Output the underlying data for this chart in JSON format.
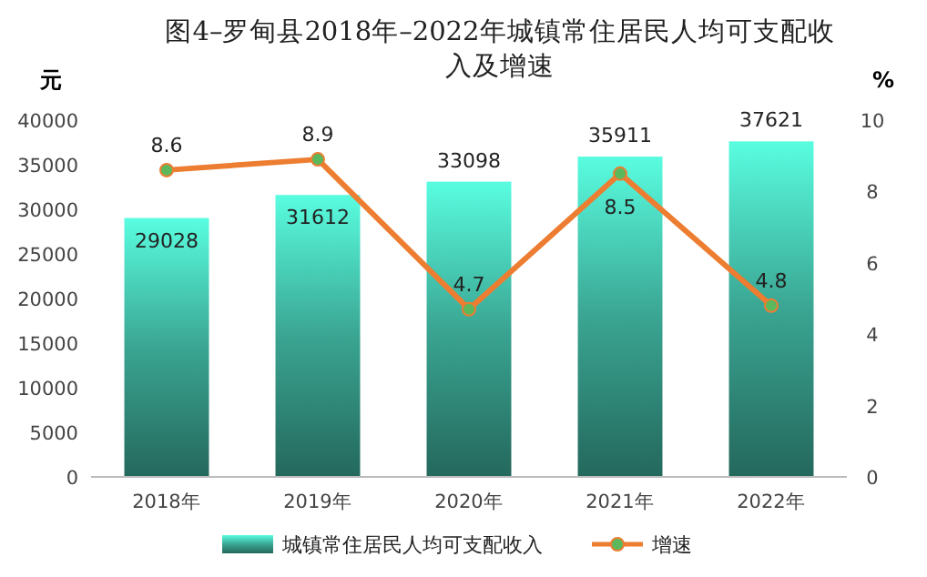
{
  "chart_data": {
    "type": "bar",
    "title": "图4–罗甸县2018年–2022年城镇常住居民人均可支配收入及增速",
    "ylabel": "元",
    "y2label": "%",
    "categories": [
      "2018年",
      "2019年",
      "2020年",
      "2021年",
      "2022年"
    ],
    "series": [
      {
        "name": "城镇常住居民人均可支配收入",
        "color": "#3aa592",
        "values": [
          29028,
          31612,
          33098,
          35911,
          37621
        ]
      },
      {
        "name": "增速",
        "type": "line",
        "axis": "y2",
        "color": "#ed7d31",
        "values": [
          8.6,
          8.9,
          4.7,
          8.5,
          4.8
        ]
      }
    ],
    "ylim": [
      0,
      40000
    ],
    "yticks": [
      0,
      5000,
      10000,
      15000,
      20000,
      25000,
      30000,
      35000,
      40000
    ],
    "y2lim": [
      0,
      10
    ],
    "y2ticks": [
      0,
      2,
      4,
      6,
      8,
      10
    ],
    "data_labels": true,
    "legend": "bottom",
    "marker": "circle",
    "grid": false
  }
}
